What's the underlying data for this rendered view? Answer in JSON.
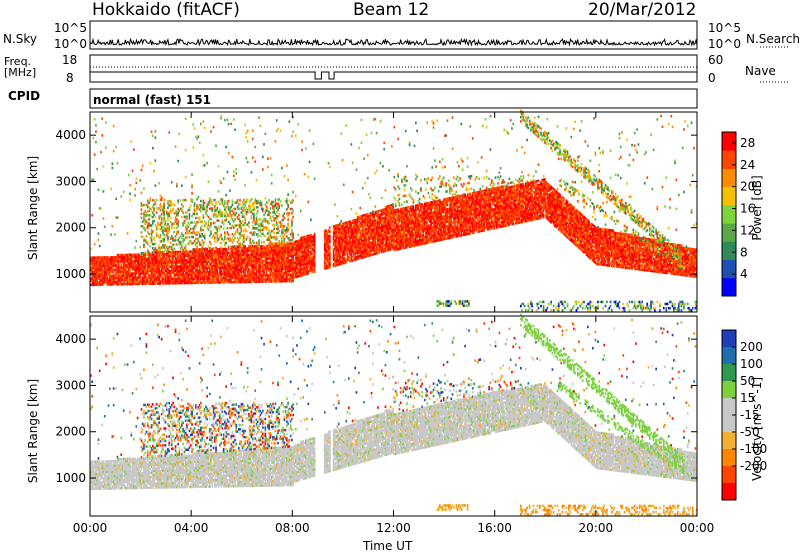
{
  "header": {
    "station": "Hokkaido (fitACF)",
    "beam": "Beam 12",
    "date": "20/Mar/2012"
  },
  "nsky_panel": {
    "left_label": "N.Sky",
    "right_label": "N.Search",
    "left_ticks": [
      "10^5",
      "10^0"
    ],
    "right_ticks": [
      "10^5",
      "10^0"
    ]
  },
  "freq_panel": {
    "left_label_line1": "Freq.",
    "left_label_line2": "[MHz]",
    "right_label": "Nave",
    "left_ticks": [
      "18",
      "8"
    ],
    "right_ticks": [
      "60",
      "0"
    ]
  },
  "cpid_panel": {
    "label": "CPID",
    "mode_text": "normal (fast) 151"
  },
  "colors": {
    "power_scale": [
      "#0000ff",
      "#1f4fb0",
      "#2e8b57",
      "#5aa846",
      "#7fd43c",
      "#f5c000",
      "#ff8c00",
      "#ff4500",
      "#ff0000"
    ],
    "velocity_scale": [
      "#1f3fb8",
      "#1f6faf",
      "#2f9a4f",
      "#7dd03f",
      "#c8c8c8",
      "#c8c8c8",
      "#f2b030",
      "#ff8800",
      "#ff4400",
      "#ff0000"
    ]
  },
  "chart_data": [
    {
      "type": "heatmap",
      "name": "power",
      "ylabel": "Slant Range [km]",
      "ylim": [
        180,
        4500
      ],
      "y_ticks": [
        1000,
        2000,
        3000,
        4000
      ],
      "xlim_hours": [
        0,
        24
      ],
      "x_ticks": [
        "00:00",
        "04:00",
        "08:00",
        "12:00",
        "16:00",
        "20:00",
        "00:00"
      ],
      "colorbar": {
        "label": "Power [dB]",
        "range": [
          0,
          30
        ],
        "ticks": [
          4,
          8,
          12,
          16,
          20,
          24,
          28
        ]
      }
    },
    {
      "type": "heatmap",
      "name": "velocity",
      "ylabel": "Slant Range [km]",
      "xlabel": "Time UT",
      "ylim": [
        180,
        4500
      ],
      "y_ticks": [
        1000,
        2000,
        3000,
        4000
      ],
      "xlim_hours": [
        0,
        24
      ],
      "x_ticks": [
        "00:00",
        "04:00",
        "08:00",
        "12:00",
        "16:00",
        "20:00",
        "00:00"
      ],
      "colorbar": {
        "label": "Velocity [m s^-1]",
        "ticks": [
          200,
          100,
          50,
          15,
          -15,
          -50,
          -100,
          -200
        ]
      }
    }
  ]
}
